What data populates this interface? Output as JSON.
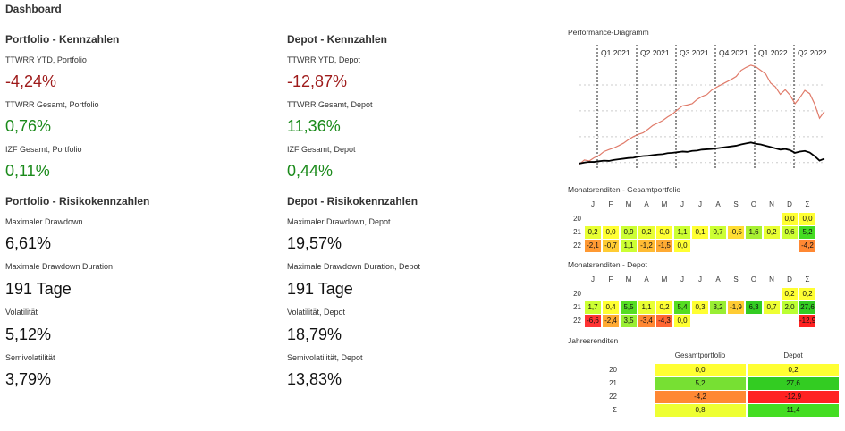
{
  "dashboard_title": "Dashboard",
  "portfolio_kpis": {
    "section_title": "Portfolio - Kennzahlen",
    "items": [
      {
        "label": "TTWRR YTD, Portfolio",
        "value": "-4,24%",
        "tone": "neg"
      },
      {
        "label": "TTWRR Gesamt, Portfolio",
        "value": "0,76%",
        "tone": "pos"
      },
      {
        "label": "IZF Gesamt, Portfolio",
        "value": "0,11%",
        "tone": "pos"
      }
    ]
  },
  "depot_kpis": {
    "section_title": "Depot - Kennzahlen",
    "items": [
      {
        "label": "TTWRR YTD, Depot",
        "value": "-12,87%",
        "tone": "neg"
      },
      {
        "label": "TTWRR Gesamt, Depot",
        "value": "11,36%",
        "tone": "pos"
      },
      {
        "label": "IZF Gesamt, Depot",
        "value": "0,44%",
        "tone": "pos"
      }
    ]
  },
  "portfolio_risk": {
    "section_title": "Portfolio - Risikokennzahlen",
    "items": [
      {
        "label": "Maximaler Drawdown",
        "value": "6,61%"
      },
      {
        "label": "Maximale Drawdown Duration",
        "value": "191 Tage"
      },
      {
        "label": "Volatilität",
        "value": "5,12%"
      },
      {
        "label": "Semivolatilität",
        "value": "3,79%"
      }
    ]
  },
  "depot_risk": {
    "section_title": "Depot - Risikokennzahlen",
    "items": [
      {
        "label": "Maximaler Drawdown, Depot",
        "value": "19,57%"
      },
      {
        "label": "Maximale Drawdown Duration, Depot",
        "value": "191 Tage"
      },
      {
        "label": "Volatilität, Depot",
        "value": "18,79%"
      },
      {
        "label": "Semivolatilität, Depot",
        "value": "13,83%"
      }
    ]
  },
  "performance": {
    "title": "Performance-Diagramm",
    "quarters": [
      "Q1 2021",
      "Q2 2021",
      "Q3 2021",
      "Q4 2021",
      "Q1 2022",
      "Q2 2022"
    ],
    "series_colors": {
      "depot": "#e07b6a",
      "portfolio": "#000000"
    }
  },
  "chart_data": {
    "type": "line",
    "title": "Performance-Diagramm",
    "x": [
      0,
      2,
      4,
      6,
      8,
      10,
      12,
      14,
      16,
      18,
      20,
      22,
      24,
      26,
      28,
      30,
      32,
      34,
      36,
      38,
      40,
      42,
      44,
      46,
      48,
      50,
      52,
      54,
      56,
      58,
      60,
      62,
      64,
      66,
      68,
      70,
      72,
      74,
      76,
      78,
      80,
      82,
      84,
      86,
      88,
      90,
      92,
      94,
      96,
      98,
      100
    ],
    "series": [
      {
        "values": [
          -0.5,
          0.8,
          0.5,
          1.5,
          2.2,
          3.4,
          4.0,
          4.5,
          5.2,
          6.0,
          7.1,
          8.0,
          8.7,
          9.2,
          10.3,
          11.5,
          12.2,
          13.0,
          14.1,
          15.0,
          16.3,
          17.5,
          17.8,
          18.2,
          19.5,
          20.4,
          21.0,
          22.4,
          23.3,
          24.1,
          24.9,
          25.7,
          26.6,
          28.5,
          29.4,
          30.1,
          29.6,
          28.5,
          27.4,
          24.6,
          23.4,
          21.1,
          22.5,
          20.8,
          18.2,
          20.1,
          22.3,
          21.3,
          18.1,
          13.7,
          15.8
        ]
      },
      {
        "values": [
          -0.3,
          0.0,
          0.2,
          0.2,
          0.4,
          0.6,
          0.5,
          0.8,
          1.0,
          1.2,
          1.4,
          1.5,
          1.8,
          2.0,
          2.1,
          2.3,
          2.5,
          2.6,
          2.9,
          3.0,
          3.2,
          3.4,
          3.3,
          3.6,
          3.7,
          4.0,
          4.1,
          4.2,
          4.4,
          4.6,
          4.8,
          5.0,
          5.2,
          5.6,
          5.9,
          6.2,
          5.8,
          5.6,
          5.2,
          4.8,
          4.4,
          4.0,
          4.2,
          3.8,
          3.0,
          3.4,
          3.6,
          3.1,
          2.0,
          0.6,
          1.2
        ]
      }
    ],
    "xlim": [
      0,
      100
    ],
    "ylim": [
      -2,
      32
    ]
  },
  "monthly_portfolio": {
    "title": "Monatsrenditen - Gesamtportfolio",
    "headers": [
      "J",
      "F",
      "M",
      "A",
      "M",
      "J",
      "J",
      "A",
      "S",
      "O",
      "N",
      "D",
      "Σ"
    ],
    "rows": [
      {
        "label": "20",
        "cells": [
          {
            "v": "",
            "c": ""
          },
          {
            "v": "",
            "c": ""
          },
          {
            "v": "",
            "c": ""
          },
          {
            "v": "",
            "c": ""
          },
          {
            "v": "",
            "c": ""
          },
          {
            "v": "",
            "c": ""
          },
          {
            "v": "",
            "c": ""
          },
          {
            "v": "",
            "c": ""
          },
          {
            "v": "",
            "c": ""
          },
          {
            "v": "",
            "c": ""
          },
          {
            "v": "",
            "c": ""
          },
          {
            "v": "0,0",
            "c": "#ffff33"
          },
          {
            "v": "0,0",
            "c": "#ffff33"
          }
        ]
      },
      {
        "label": "21",
        "cells": [
          {
            "v": "0,2",
            "c": "#e8ff33"
          },
          {
            "v": "0,0",
            "c": "#ffff33"
          },
          {
            "v": "0,9",
            "c": "#ccff33"
          },
          {
            "v": "0,2",
            "c": "#e8ff33"
          },
          {
            "v": "0,0",
            "c": "#ffff33"
          },
          {
            "v": "1,1",
            "c": "#ccff33"
          },
          {
            "v": "0,1",
            "c": "#ffff33"
          },
          {
            "v": "0,7",
            "c": "#ccff33"
          },
          {
            "v": "-0,5",
            "c": "#ffdd33"
          },
          {
            "v": "1,6",
            "c": "#a8f033"
          },
          {
            "v": "0,2",
            "c": "#e8ff33"
          },
          {
            "v": "0,6",
            "c": "#ccff33"
          },
          {
            "v": "5,2",
            "c": "#44dd22"
          }
        ]
      },
      {
        "label": "22",
        "cells": [
          {
            "v": "-2,1",
            "c": "#ff9933"
          },
          {
            "v": "-0,7",
            "c": "#ffcc33"
          },
          {
            "v": "1,1",
            "c": "#ccff33"
          },
          {
            "v": "-1,2",
            "c": "#ffbb33"
          },
          {
            "v": "-1,5",
            "c": "#ffaa33"
          },
          {
            "v": "0,0",
            "c": "#ffff33"
          },
          {
            "v": "",
            "c": ""
          },
          {
            "v": "",
            "c": ""
          },
          {
            "v": "",
            "c": ""
          },
          {
            "v": "",
            "c": ""
          },
          {
            "v": "",
            "c": ""
          },
          {
            "v": "",
            "c": ""
          },
          {
            "v": "-4,2",
            "c": "#ff8833"
          }
        ]
      }
    ]
  },
  "monthly_depot": {
    "title": "Monatsrenditen - Depot",
    "headers": [
      "J",
      "F",
      "M",
      "A",
      "M",
      "J",
      "J",
      "A",
      "S",
      "O",
      "N",
      "D",
      "Σ"
    ],
    "rows": [
      {
        "label": "20",
        "cells": [
          {
            "v": "",
            "c": ""
          },
          {
            "v": "",
            "c": ""
          },
          {
            "v": "",
            "c": ""
          },
          {
            "v": "",
            "c": ""
          },
          {
            "v": "",
            "c": ""
          },
          {
            "v": "",
            "c": ""
          },
          {
            "v": "",
            "c": ""
          },
          {
            "v": "",
            "c": ""
          },
          {
            "v": "",
            "c": ""
          },
          {
            "v": "",
            "c": ""
          },
          {
            "v": "",
            "c": ""
          },
          {
            "v": "0,2",
            "c": "#ffff33"
          },
          {
            "v": "0,2",
            "c": "#ffff33"
          }
        ]
      },
      {
        "label": "21",
        "cells": [
          {
            "v": "1,7",
            "c": "#ccff33"
          },
          {
            "v": "0,4",
            "c": "#ffff33"
          },
          {
            "v": "5,5",
            "c": "#55dd22"
          },
          {
            "v": "1,1",
            "c": "#e8ff33"
          },
          {
            "v": "0,2",
            "c": "#ffff33"
          },
          {
            "v": "5,4",
            "c": "#55dd22"
          },
          {
            "v": "0,3",
            "c": "#ffff33"
          },
          {
            "v": "3,2",
            "c": "#99ee33"
          },
          {
            "v": "-1,9",
            "c": "#ffcc33"
          },
          {
            "v": "6,3",
            "c": "#33cc22"
          },
          {
            "v": "0,7",
            "c": "#eeff33"
          },
          {
            "v": "2,0",
            "c": "#bbff33"
          },
          {
            "v": "27,6",
            "c": "#33cc22"
          }
        ]
      },
      {
        "label": "22",
        "cells": [
          {
            "v": "-6,6",
            "c": "#ff3333"
          },
          {
            "v": "-2,4",
            "c": "#ffaa33"
          },
          {
            "v": "3,5",
            "c": "#99ee33"
          },
          {
            "v": "-3,4",
            "c": "#ff8833"
          },
          {
            "v": "-4,3",
            "c": "#ff6633"
          },
          {
            "v": "0,0",
            "c": "#ffff33"
          },
          {
            "v": "",
            "c": ""
          },
          {
            "v": "",
            "c": ""
          },
          {
            "v": "",
            "c": ""
          },
          {
            "v": "",
            "c": ""
          },
          {
            "v": "",
            "c": ""
          },
          {
            "v": "",
            "c": ""
          },
          {
            "v": "-12,9",
            "c": "#ff2222"
          }
        ]
      }
    ]
  },
  "yearly": {
    "title": "Jahresrenditen",
    "headers": [
      "Gesamtportfolio",
      "Depot"
    ],
    "rows": [
      {
        "label": "20",
        "cells": [
          {
            "v": "0,0",
            "c": "#ffff33"
          },
          {
            "v": "0,2",
            "c": "#ffff33"
          }
        ]
      },
      {
        "label": "21",
        "cells": [
          {
            "v": "5,2",
            "c": "#77e033"
          },
          {
            "v": "27,6",
            "c": "#33cc22"
          }
        ]
      },
      {
        "label": "22",
        "cells": [
          {
            "v": "-4,2",
            "c": "#ff8833"
          },
          {
            "v": "-12,9",
            "c": "#ff2222"
          }
        ]
      },
      {
        "label": "Σ",
        "cells": [
          {
            "v": "0,8",
            "c": "#eeff33"
          },
          {
            "v": "11,4",
            "c": "#44dd22"
          }
        ]
      }
    ]
  }
}
